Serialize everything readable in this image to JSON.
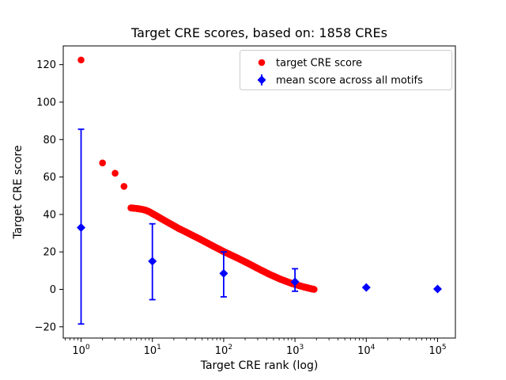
{
  "figure": {
    "background": "#ffffff"
  },
  "chart_data": {
    "type": "scatter",
    "title": "Target CRE scores, based on: 1858 CREs",
    "xlabel": "Target CRE rank (log)",
    "ylabel": "Target CRE score",
    "x_scale": "log",
    "xlim_log10": [
      -0.25,
      5.25
    ],
    "ylim": [
      -26,
      130
    ],
    "y_ticks": [
      -20,
      0,
      20,
      40,
      60,
      80,
      100,
      120
    ],
    "x_tick_decades": [
      0,
      1,
      2,
      3,
      4,
      5
    ],
    "grid": false,
    "legend_position": "upper right",
    "colors": {
      "red_series": "#ff0000",
      "blue_series": "#0000ff",
      "axis": "#000000",
      "legend_border": "#cccccc"
    },
    "series": [
      {
        "name": "target CRE score",
        "marker": "circle",
        "color": "#ff0000",
        "head_points": [
          [
            1,
            122.5
          ],
          [
            2,
            67.5
          ],
          [
            3,
            62.0
          ],
          [
            4,
            55.0
          ]
        ],
        "band_points": [
          [
            5,
            43.5
          ],
          [
            6,
            43.2
          ],
          [
            7,
            42.8
          ],
          [
            8,
            42.3
          ],
          [
            9,
            41.5
          ],
          [
            10,
            40.5
          ],
          [
            12,
            38.8
          ],
          [
            14,
            37.3
          ],
          [
            17,
            35.5
          ],
          [
            20,
            34.0
          ],
          [
            24,
            32.3
          ],
          [
            29,
            30.8
          ],
          [
            35,
            29.2
          ],
          [
            42,
            27.7
          ],
          [
            50,
            26.2
          ],
          [
            60,
            24.6
          ],
          [
            72,
            23.0
          ],
          [
            86,
            21.5
          ],
          [
            100,
            20.2
          ],
          [
            120,
            18.8
          ],
          [
            145,
            17.3
          ],
          [
            175,
            15.8
          ],
          [
            210,
            14.3
          ],
          [
            250,
            12.8
          ],
          [
            300,
            11.2
          ],
          [
            360,
            9.7
          ],
          [
            430,
            8.2
          ],
          [
            520,
            6.8
          ],
          [
            620,
            5.5
          ],
          [
            750,
            4.3
          ],
          [
            900,
            3.2
          ],
          [
            1100,
            2.2
          ],
          [
            1300,
            1.4
          ],
          [
            1500,
            0.8
          ],
          [
            1700,
            0.3
          ],
          [
            1858,
            0.0
          ]
        ]
      },
      {
        "name": "mean score across all motifs",
        "marker": "diamond",
        "color": "#0000ff",
        "x": [
          1,
          10,
          100,
          1000,
          10000,
          100000
        ],
        "y": [
          33,
          15,
          8.5,
          4,
          1,
          0.2
        ],
        "err_low": [
          -18.5,
          -5.5,
          -4,
          -1,
          1,
          0.2
        ],
        "err_high": [
          85.5,
          35,
          20,
          11,
          1,
          0.2
        ]
      }
    ]
  }
}
